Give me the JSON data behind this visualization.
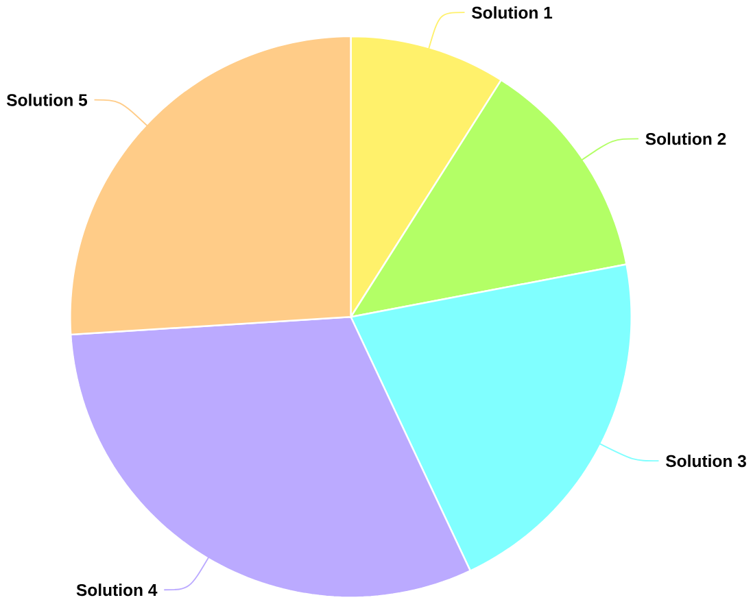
{
  "chart_data": {
    "type": "pie",
    "categories": [
      "Solution 1",
      "Solution 2",
      "Solution 3",
      "Solution 4",
      "Solution 5"
    ],
    "values": [
      9,
      13,
      21,
      31,
      26
    ],
    "colors": [
      "#fff16b",
      "#b3ff66",
      "#80ffff",
      "#bbaaff",
      "#ffcc88"
    ]
  }
}
